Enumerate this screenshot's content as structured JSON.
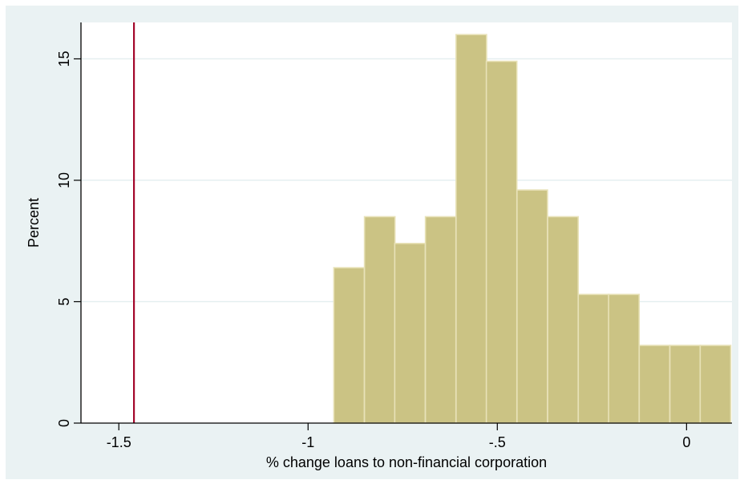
{
  "chart_data": {
    "type": "bar",
    "subtype": "histogram",
    "xlabel": "% change loans to non-financial corporation",
    "ylabel": "Percent",
    "xlim": [
      -1.6,
      0.12
    ],
    "ylim": [
      0,
      16.5
    ],
    "x_ticks": [
      {
        "value": -1.5,
        "label": "-1.5"
      },
      {
        "value": -1,
        "label": "-1"
      },
      {
        "value": -0.5,
        "label": "-.5"
      },
      {
        "value": 0,
        "label": "0"
      }
    ],
    "y_ticks": [
      {
        "value": 0,
        "label": "0"
      },
      {
        "value": 5,
        "label": "5"
      },
      {
        "value": 10,
        "label": "10"
      },
      {
        "value": 15,
        "label": "15"
      }
    ],
    "bin_width": 0.0807,
    "bins": [
      {
        "start": -0.932,
        "value": 6.4
      },
      {
        "start": -0.851,
        "value": 8.5
      },
      {
        "start": -0.771,
        "value": 7.4
      },
      {
        "start": -0.69,
        "value": 8.5
      },
      {
        "start": -0.609,
        "value": 16.0
      },
      {
        "start": -0.529,
        "value": 14.9
      },
      {
        "start": -0.448,
        "value": 9.6
      },
      {
        "start": -0.367,
        "value": 8.5
      },
      {
        "start": -0.286,
        "value": 5.3
      },
      {
        "start": -0.206,
        "value": 5.3
      },
      {
        "start": -0.125,
        "value": 3.2
      },
      {
        "start": -0.044,
        "value": 3.2
      },
      {
        "start": 0.036,
        "value": 3.2
      }
    ],
    "reference_line": {
      "x": -1.46,
      "color": "#a3072b"
    },
    "colors": {
      "bar_fill": "#cbc384",
      "bar_edge": "#e8e2b8",
      "plot_background": "#ffffff",
      "outer_background": "#eaf2f3",
      "gridline": "#e3eeef"
    },
    "grid": true
  }
}
